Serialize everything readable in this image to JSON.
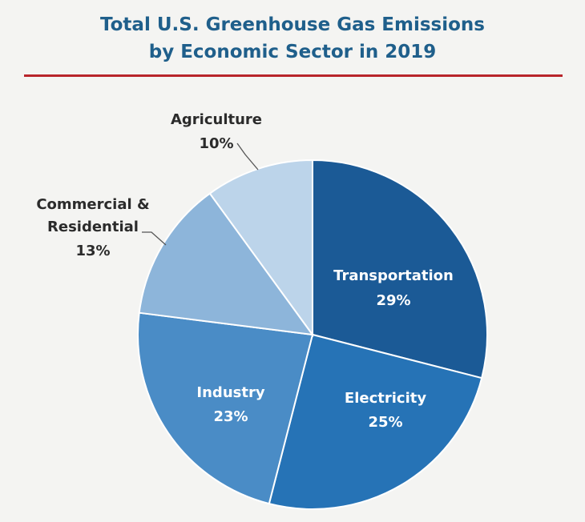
{
  "chart_data": {
    "type": "pie",
    "title_line1": "Total U.S. Greenhouse Gas Emissions",
    "title_line2": "by Economic Sector in 2019",
    "slices": [
      {
        "id": "transportation",
        "label": "Transportation",
        "value": 29,
        "value_text": "29%",
        "color": "#1b5a96"
      },
      {
        "id": "electricity",
        "label": "Electricity",
        "value": 25,
        "value_text": "25%",
        "color": "#2673b6"
      },
      {
        "id": "industry",
        "label": "Industry",
        "value": 23,
        "value_text": "23%",
        "color": "#4a8cc6"
      },
      {
        "id": "commercial-residential",
        "label": "Commercial & Residential",
        "label_line1": "Commercial &",
        "label_line2": "Residential",
        "value": 13,
        "value_text": "13%",
        "color": "#8db5da"
      },
      {
        "id": "agriculture",
        "label": "Agriculture",
        "value": 10,
        "value_text": "10%",
        "color": "#bcd4ea"
      }
    ]
  }
}
